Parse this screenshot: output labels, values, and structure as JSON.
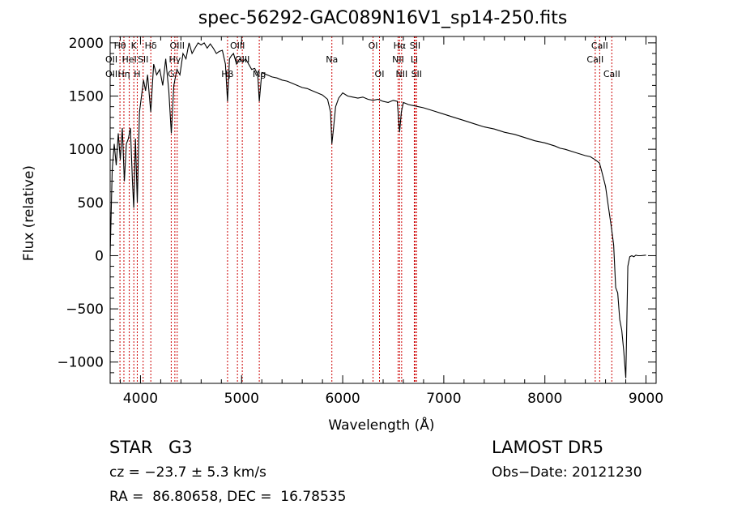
{
  "chart_data": {
    "type": "line",
    "title": "spec-56292-GAC089N16V1_sp14-250.fits",
    "xlabel": "Wavelength (Å)",
    "ylabel": "Flux (relative)",
    "xlim": [
      3700,
      9100
    ],
    "ylim": [
      -1200,
      2060
    ],
    "x_ticks": [
      4000,
      5000,
      6000,
      7000,
      8000,
      9000
    ],
    "y_ticks": [
      -1000,
      -500,
      0,
      500,
      1000,
      1500,
      2000
    ],
    "grid": false,
    "line_color": "#000000",
    "marker_color": "#cc0000",
    "series": [
      {
        "x": [
          3700,
          3720,
          3740,
          3760,
          3780,
          3800,
          3820,
          3840,
          3860,
          3880,
          3900,
          3920,
          3933,
          3950,
          3968,
          3990,
          4010,
          4030,
          4050,
          4070,
          4101,
          4130,
          4160,
          4190,
          4220,
          4250,
          4280,
          4305,
          4330,
          4360,
          4390,
          4420,
          4450,
          4480,
          4510,
          4540,
          4570,
          4600,
          4630,
          4660,
          4690,
          4720,
          4750,
          4780,
          4810,
          4840,
          4861,
          4880,
          4900,
          4920,
          4950,
          4980,
          5010,
          5040,
          5070,
          5100,
          5130,
          5160,
          5175,
          5200,
          5250,
          5300,
          5350,
          5400,
          5450,
          5500,
          5550,
          5600,
          5650,
          5700,
          5750,
          5800,
          5850,
          5880,
          5893,
          5910,
          5930,
          5960,
          6000,
          6050,
          6100,
          6150,
          6200,
          6250,
          6300,
          6350,
          6400,
          6450,
          6500,
          6540,
          6563,
          6580,
          6600,
          6650,
          6700,
          6750,
          6800,
          6900,
          7000,
          7100,
          7200,
          7300,
          7400,
          7500,
          7600,
          7700,
          7800,
          7900,
          8000,
          8100,
          8150,
          8200,
          8300,
          8400,
          8450,
          8500,
          8540,
          8560,
          8600,
          8630,
          8660,
          8680,
          8700,
          8720,
          8740,
          8760,
          8780,
          8800,
          8820,
          8840,
          8860,
          8880,
          8900,
          8920,
          8950,
          9000
        ],
        "y": [
          0,
          800,
          1050,
          850,
          1150,
          900,
          1200,
          700,
          1050,
          1100,
          1200,
          700,
          450,
          1100,
          500,
          1350,
          1500,
          1650,
          1550,
          1700,
          1350,
          1800,
          1700,
          1750,
          1600,
          1850,
          1550,
          1150,
          1600,
          1750,
          1700,
          1900,
          1850,
          2000,
          1900,
          1950,
          2000,
          1980,
          2000,
          1950,
          1990,
          1950,
          1900,
          1920,
          1930,
          1800,
          1450,
          1850,
          1880,
          1900,
          1800,
          1850,
          1820,
          1850,
          1800,
          1750,
          1760,
          1700,
          1450,
          1720,
          1700,
          1680,
          1670,
          1650,
          1640,
          1620,
          1600,
          1580,
          1570,
          1550,
          1530,
          1510,
          1470,
          1350,
          1050,
          1200,
          1400,
          1480,
          1530,
          1500,
          1490,
          1480,
          1490,
          1470,
          1460,
          1470,
          1450,
          1440,
          1460,
          1450,
          1160,
          1350,
          1440,
          1420,
          1410,
          1400,
          1390,
          1360,
          1330,
          1300,
          1270,
          1240,
          1210,
          1190,
          1160,
          1140,
          1110,
          1080,
          1060,
          1030,
          1010,
          1000,
          970,
          940,
          930,
          900,
          870,
          800,
          650,
          450,
          250,
          100,
          -300,
          -350,
          -600,
          -700,
          -900,
          -1150,
          -100,
          -10,
          0,
          -10,
          5,
          0,
          0,
          5
        ]
      }
    ],
    "line_markers": [
      {
        "w": 3797,
        "label": "Hθ",
        "row": 0
      },
      {
        "w": 3836,
        "label": "Hη",
        "row": 2
      },
      {
        "w": 3889,
        "label": "HeI",
        "row": 1
      },
      {
        "w": 3934,
        "label": "K",
        "row": 0
      },
      {
        "w": 3968,
        "label": "H",
        "row": 2
      },
      {
        "w": 4026,
        "label": "SII",
        "row": 1
      },
      {
        "w": 4102,
        "label": "Hδ",
        "row": 0
      },
      {
        "w": 4304,
        "label": "G",
        "row": 2
      },
      {
        "w": 4340,
        "label": "Hγ",
        "row": 1
      },
      {
        "w": 4363,
        "label": "OIII",
        "row": 0
      },
      {
        "w": 4861,
        "label": "Hβ",
        "row": 2
      },
      {
        "w": 4959,
        "label": "OIII",
        "row": 0
      },
      {
        "w": 5007,
        "label": "OIII",
        "row": 1
      },
      {
        "w": 5175,
        "label": "Mg",
        "row": 2
      },
      {
        "w": 5893,
        "label": "Na",
        "row": 1
      },
      {
        "w": 6300,
        "label": "OI",
        "row": 0
      },
      {
        "w": 6364,
        "label": "OI",
        "row": 2
      },
      {
        "w": 6548,
        "label": "NII",
        "row": 1
      },
      {
        "w": 6563,
        "label": "Hα",
        "row": 0
      },
      {
        "w": 6583,
        "label": "NII",
        "row": 2
      },
      {
        "w": 6708,
        "label": "Li",
        "row": 1
      },
      {
        "w": 6716,
        "label": "SII",
        "row": 0
      },
      {
        "w": 6731,
        "label": "SII",
        "row": 2
      },
      {
        "w": 8498,
        "label": "CaII",
        "row": 1
      },
      {
        "w": 8542,
        "label": "CaII",
        "row": 0
      },
      {
        "w": 8662,
        "label": "CaII",
        "row": 2
      }
    ],
    "left_edge_labels": [
      {
        "label": "OII",
        "row": 1
      },
      {
        "label": "OII",
        "row": 2
      }
    ]
  },
  "info": {
    "object_class": "STAR",
    "subclass": "G3",
    "survey": "LAMOST DR5",
    "cz": "cz = −23.7 ± 5.3 km/s",
    "obs_date": "Obs−Date: 20121230",
    "coords": "RA =  86.80658, DEC =  16.78535"
  }
}
